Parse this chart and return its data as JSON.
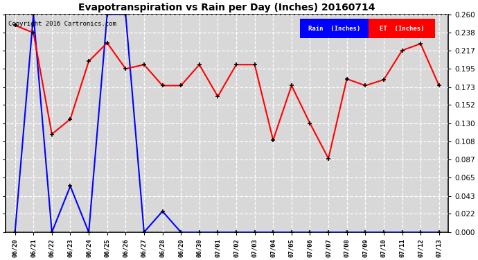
{
  "title": "Evapotranspiration vs Rain per Day (Inches) 20160714",
  "copyright": "Copyright 2016 Cartronics.com",
  "x_labels": [
    "06/20",
    "06/21",
    "06/22",
    "06/23",
    "06/24",
    "06/25",
    "06/26",
    "06/27",
    "06/28",
    "06/29",
    "06/30",
    "07/01",
    "07/02",
    "07/03",
    "07/04",
    "07/05",
    "07/06",
    "07/07",
    "07/08",
    "07/09",
    "07/10",
    "07/11",
    "07/12",
    "07/13"
  ],
  "rain_data": [
    0.0,
    0.26,
    0.0,
    0.055,
    0.0,
    0.26,
    0.26,
    0.0,
    0.025,
    0.0,
    0.0,
    0.0,
    0.0,
    0.0,
    0.0,
    0.0,
    0.0,
    0.0,
    0.0,
    0.0,
    0.0,
    0.0,
    0.0,
    0.0
  ],
  "et_data": [
    0.247,
    0.238,
    0.117,
    0.135,
    0.204,
    0.226,
    0.195,
    0.2,
    0.175,
    0.175,
    0.2,
    0.162,
    0.2,
    0.2,
    0.11,
    0.175,
    0.13,
    0.088,
    0.183,
    0.175,
    0.182,
    0.217,
    0.225,
    0.175
  ],
  "rain_color": "#0000ff",
  "et_color": "#ff0000",
  "ylim": [
    0.0,
    0.26
  ],
  "yticks": [
    0.0,
    0.022,
    0.043,
    0.065,
    0.087,
    0.108,
    0.13,
    0.152,
    0.173,
    0.195,
    0.217,
    0.238,
    0.26
  ],
  "plot_bg": "#d8d8d8",
  "fig_bg": "#ffffff",
  "grid_color": "#ffffff",
  "title_fontsize": 10,
  "tick_fontsize": 7.5,
  "xtick_fontsize": 6.5
}
